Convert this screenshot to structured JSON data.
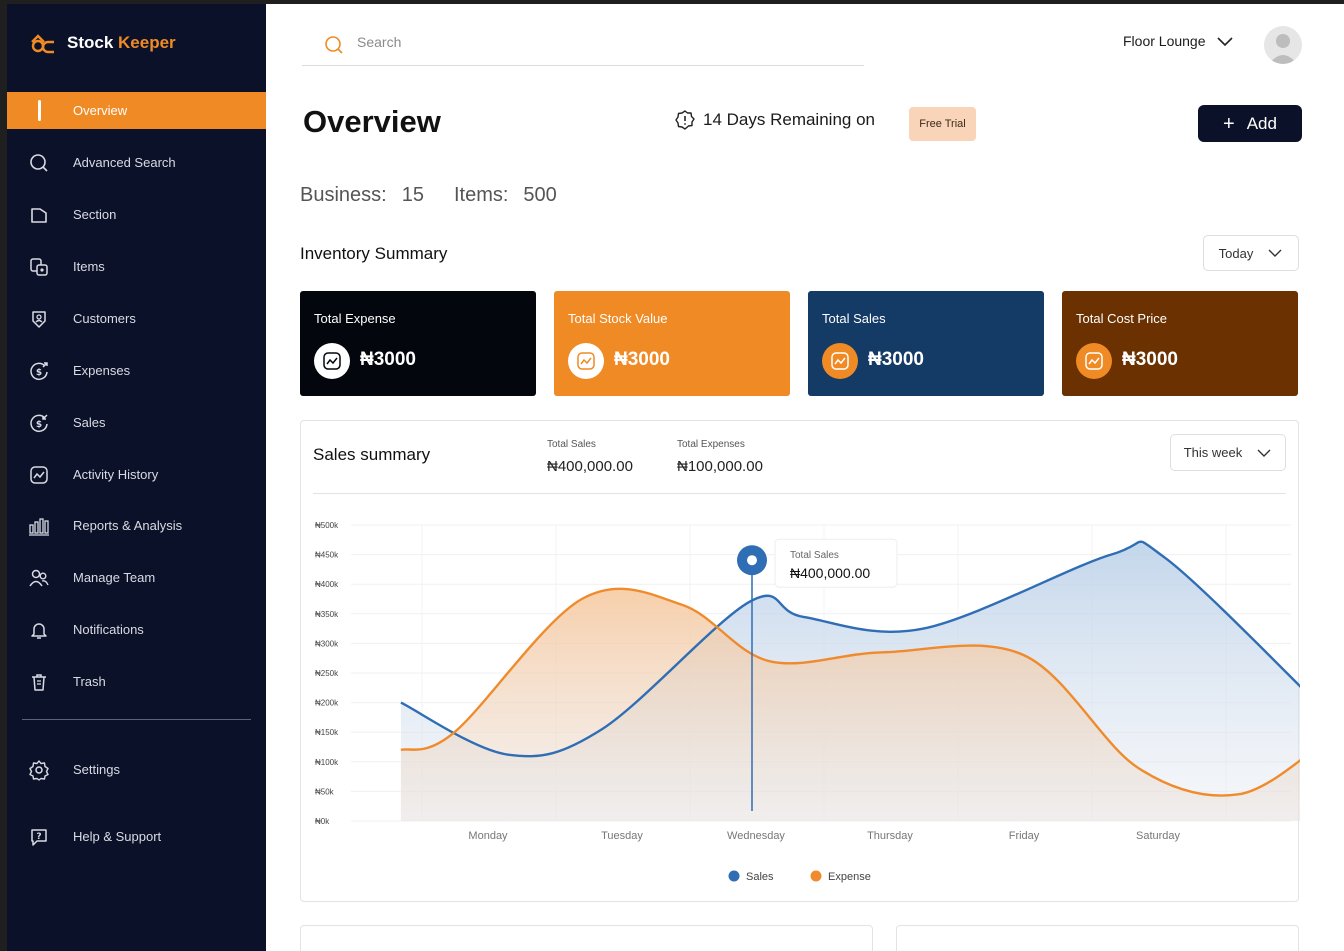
{
  "app": {
    "brand_left": "Stock",
    "brand_right": "Keeper"
  },
  "sidebar": {
    "items": [
      {
        "label": "Overview",
        "icon": "overview-icon",
        "active": true
      },
      {
        "label": "Advanced Search",
        "icon": "search-icon"
      },
      {
        "label": "Section",
        "icon": "folder-icon"
      },
      {
        "label": "Items",
        "icon": "items-icon"
      },
      {
        "label": "Customers",
        "icon": "customer-shield-icon"
      },
      {
        "label": "Expenses",
        "icon": "expense-dollar-icon"
      },
      {
        "label": "Sales",
        "icon": "sales-dollar-icon"
      },
      {
        "label": "Activity History",
        "icon": "activity-chart-icon"
      },
      {
        "label": "Reports & Analysis",
        "icon": "bar-chart-icon"
      },
      {
        "label": "Manage Team",
        "icon": "team-icon"
      },
      {
        "label": "Notifications",
        "icon": "bell-icon"
      },
      {
        "label": "Trash",
        "icon": "trash-icon"
      }
    ],
    "footer": [
      {
        "label": "Settings",
        "icon": "gear-icon"
      },
      {
        "label": "Help & Support",
        "icon": "help-icon"
      }
    ]
  },
  "topbar": {
    "search_placeholder": "Search",
    "workspace": "Floor Lounge"
  },
  "header": {
    "title": "Overview",
    "trial_text": "14 Days Remaining on",
    "trial_badge": "Free Trial",
    "add_label": "Add"
  },
  "stats": {
    "business_label": "Business:",
    "business_value": "15",
    "items_label": "Items:",
    "items_value": "500"
  },
  "inventory": {
    "title": "Inventory Summary",
    "period": "Today",
    "cards": [
      {
        "title": "Total Expense",
        "value": "₦3000",
        "color": "#04060d"
      },
      {
        "title": "Total Stock Value",
        "value": "₦3000",
        "color": "#f08a24"
      },
      {
        "title": "Total  Sales",
        "value": "₦3000",
        "color": "#143a66"
      },
      {
        "title": "Total Cost Price",
        "value": "₦3000",
        "color": "#6b3100"
      }
    ]
  },
  "sales_summary": {
    "title": "Sales summary",
    "total_sales_label": "Total Sales",
    "total_sales_value": "₦400,000.00",
    "total_expenses_label": "Total Expenses",
    "total_expenses_value": "₦100,000.00",
    "period": "This week",
    "tooltip_label": "Total Sales",
    "tooltip_value": "₦400,000.00"
  },
  "chart_data": {
    "type": "area",
    "x": [
      "Monday",
      "Tuesday",
      "Wednesday",
      "Thursday",
      "Friday",
      "Saturday"
    ],
    "y_ticks": [
      "₦0k",
      "₦50k",
      "₦100k",
      "₦150k",
      "₦200k",
      "₦250k",
      "₦300k",
      "₦350k",
      "₦400k",
      "₦450k",
      "₦500k"
    ],
    "ylim": [
      0,
      500
    ],
    "series": [
      {
        "name": "Sales",
        "color": "#2f6db5",
        "points": [
          [
            0.35,
            200
          ],
          [
            1.15,
            112
          ],
          [
            1.85,
            155
          ],
          [
            2.95,
            370
          ],
          [
            3.35,
            345
          ],
          [
            4.25,
            325
          ],
          [
            5.65,
            450
          ],
          [
            6.05,
            445
          ],
          [
            7.25,
            185
          ]
        ]
      },
      {
        "name": "Expense",
        "color": "#ef8b2c",
        "points": [
          [
            0.35,
            120
          ],
          [
            0.75,
            150
          ],
          [
            1.7,
            375
          ],
          [
            2.45,
            365
          ],
          [
            3.1,
            270
          ],
          [
            3.95,
            285
          ],
          [
            5.0,
            280
          ],
          [
            5.85,
            90
          ],
          [
            6.6,
            45
          ],
          [
            7.25,
            135
          ]
        ]
      }
    ],
    "highlight": {
      "series": "Sales",
      "x": "Wednesday",
      "value": 400
    },
    "legend": [
      "Sales",
      "Expense"
    ],
    "legend_position": "bottom"
  }
}
